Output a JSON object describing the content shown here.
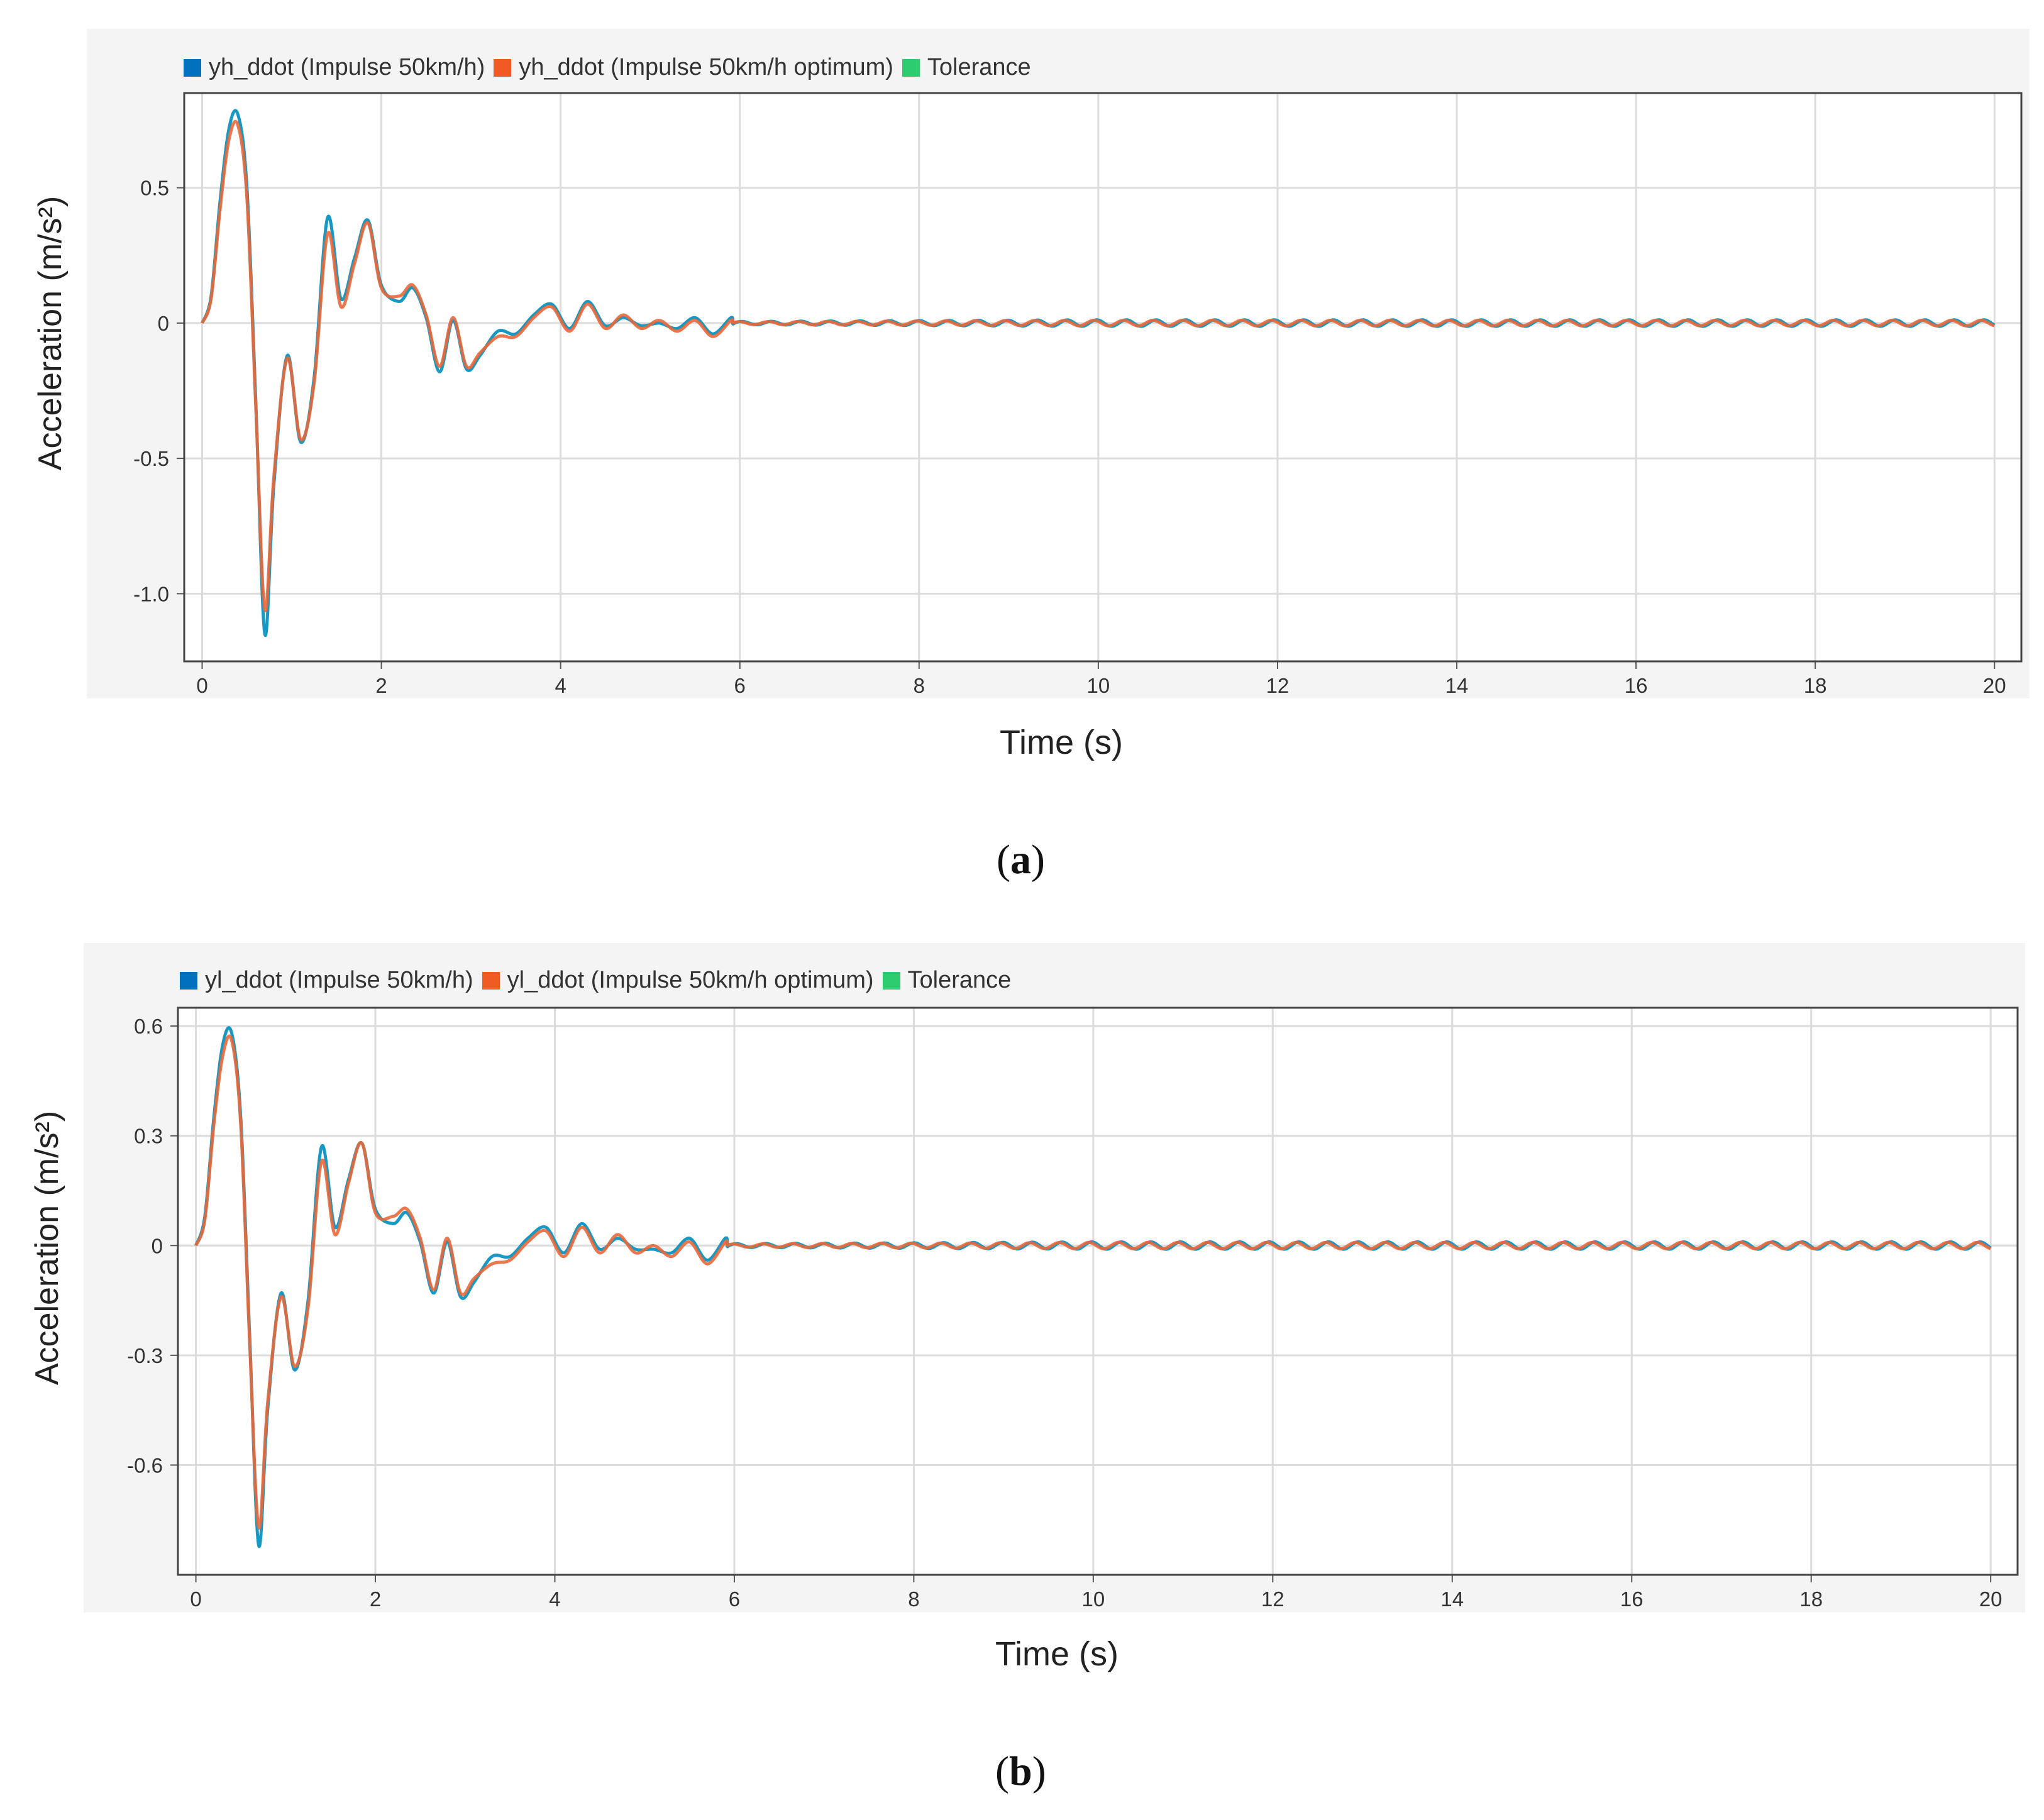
{
  "chart_data": [
    {
      "type": "line",
      "panel_label": "a",
      "legend": [
        {
          "label": "yh_ddot (Impulse 50km/h)",
          "color": "#0072bd"
        },
        {
          "label": "yh_ddot (Impulse 50km/h optimum)",
          "color": "#f05a23"
        },
        {
          "label": "Tolerance",
          "color": "#2ecc71"
        }
      ],
      "xlabel": "Time (s)",
      "ylabel": "Acceleration (m/s²)",
      "xlim": [
        -0.2,
        20.3
      ],
      "ylim": [
        -1.25,
        0.85
      ],
      "xticks": [
        0,
        2,
        4,
        6,
        8,
        10,
        12,
        14,
        16,
        18,
        20
      ],
      "yticks": [
        0.5,
        0,
        -0.5,
        -1.0
      ],
      "ytick_labels": [
        "0.5",
        "0",
        "-0.5",
        "-1.0"
      ],
      "grid": true,
      "series": [
        {
          "name": "yh_ddot (Impulse 50km/h)",
          "color": "#1899c4",
          "x": [
            0,
            0.1,
            0.2,
            0.3,
            0.4,
            0.5,
            0.6,
            0.7,
            0.8,
            0.95,
            1.1,
            1.25,
            1.4,
            1.55,
            1.7,
            1.85,
            2.0,
            2.2,
            2.35,
            2.5,
            2.65,
            2.8,
            2.95,
            3.1,
            3.3,
            3.5,
            3.7,
            3.9,
            4.1,
            4.3,
            4.5,
            4.7,
            4.9,
            5.1,
            5.3,
            5.5,
            5.7,
            5.9
          ],
          "y": [
            0.0,
            0.1,
            0.45,
            0.72,
            0.77,
            0.5,
            -0.3,
            -1.15,
            -0.6,
            -0.12,
            -0.44,
            -0.2,
            0.39,
            0.09,
            0.24,
            0.38,
            0.14,
            0.08,
            0.13,
            0.02,
            -0.18,
            0.01,
            -0.17,
            -0.12,
            -0.03,
            -0.04,
            0.03,
            0.07,
            -0.02,
            0.08,
            -0.01,
            0.02,
            -0.01,
            0.0,
            -0.02,
            0.02,
            -0.04,
            0.02
          ]
        },
        {
          "name": "yh_ddot (Impulse 50km/h optimum)",
          "color": "#e8683a",
          "x": [
            0,
            0.1,
            0.2,
            0.3,
            0.4,
            0.5,
            0.6,
            0.7,
            0.8,
            0.95,
            1.1,
            1.25,
            1.4,
            1.55,
            1.7,
            1.85,
            2.0,
            2.2,
            2.35,
            2.5,
            2.65,
            2.8,
            2.95,
            3.1,
            3.3,
            3.5,
            3.7,
            3.9,
            4.1,
            4.3,
            4.5,
            4.7,
            4.9,
            5.1,
            5.3,
            5.5,
            5.7,
            5.9
          ],
          "y": [
            0.0,
            0.09,
            0.42,
            0.68,
            0.73,
            0.46,
            -0.32,
            -1.06,
            -0.57,
            -0.13,
            -0.43,
            -0.22,
            0.33,
            0.06,
            0.22,
            0.37,
            0.13,
            0.1,
            0.14,
            0.03,
            -0.16,
            0.02,
            -0.16,
            -0.11,
            -0.05,
            -0.05,
            0.02,
            0.06,
            -0.03,
            0.07,
            -0.02,
            0.03,
            -0.02,
            0.01,
            -0.03,
            0.01,
            -0.05,
            0.01
          ]
        }
      ],
      "steady_oscillation": {
        "start": 5.9,
        "end": 20,
        "amplitude": 0.012,
        "period": 0.33
      }
    },
    {
      "type": "line",
      "panel_label": "b",
      "legend": [
        {
          "label": "yl_ddot (Impulse 50km/h)",
          "color": "#0072bd"
        },
        {
          "label": "yl_ddot (Impulse 50km/h optimum)",
          "color": "#f05a23"
        },
        {
          "label": "Tolerance",
          "color": "#2ecc71"
        }
      ],
      "xlabel": "Time (s)",
      "ylabel": "Acceleration (m/s²)",
      "xlim": [
        -0.2,
        20.3
      ],
      "ylim": [
        -0.9,
        0.65
      ],
      "xticks": [
        0,
        2,
        4,
        6,
        8,
        10,
        12,
        14,
        16,
        18,
        20
      ],
      "yticks": [
        0.6,
        0.3,
        0,
        -0.3,
        -0.6
      ],
      "ytick_labels": [
        "0.6",
        "0.3",
        "0",
        "-0.3",
        "-0.6"
      ],
      "grid": true,
      "series": [
        {
          "name": "yl_ddot (Impulse 50km/h)",
          "color": "#1899c4",
          "x": [
            0,
            0.1,
            0.2,
            0.3,
            0.4,
            0.5,
            0.6,
            0.7,
            0.8,
            0.95,
            1.1,
            1.25,
            1.4,
            1.55,
            1.7,
            1.85,
            2.0,
            2.2,
            2.35,
            2.5,
            2.65,
            2.8,
            2.95,
            3.1,
            3.3,
            3.5,
            3.7,
            3.9,
            4.1,
            4.3,
            4.5,
            4.7,
            4.9,
            5.1,
            5.3,
            5.5,
            5.7,
            5.9
          ],
          "y": [
            0.0,
            0.08,
            0.35,
            0.55,
            0.58,
            0.35,
            -0.25,
            -0.82,
            -0.45,
            -0.13,
            -0.34,
            -0.15,
            0.27,
            0.05,
            0.18,
            0.28,
            0.1,
            0.06,
            0.09,
            0.01,
            -0.13,
            0.01,
            -0.14,
            -0.1,
            -0.03,
            -0.03,
            0.02,
            0.05,
            -0.02,
            0.06,
            -0.01,
            0.02,
            -0.01,
            -0.01,
            -0.02,
            0.02,
            -0.04,
            0.02
          ]
        },
        {
          "name": "yl_ddot (Impulse 50km/h optimum)",
          "color": "#e8683a",
          "x": [
            0,
            0.1,
            0.2,
            0.3,
            0.4,
            0.5,
            0.6,
            0.7,
            0.8,
            0.95,
            1.1,
            1.25,
            1.4,
            1.55,
            1.7,
            1.85,
            2.0,
            2.2,
            2.35,
            2.5,
            2.65,
            2.8,
            2.95,
            3.1,
            3.3,
            3.5,
            3.7,
            3.9,
            4.1,
            4.3,
            4.5,
            4.7,
            4.9,
            5.1,
            5.3,
            5.5,
            5.7,
            5.9
          ],
          "y": [
            0.0,
            0.07,
            0.33,
            0.52,
            0.56,
            0.33,
            -0.27,
            -0.77,
            -0.43,
            -0.14,
            -0.33,
            -0.17,
            0.23,
            0.03,
            0.17,
            0.28,
            0.09,
            0.08,
            0.1,
            0.02,
            -0.12,
            0.02,
            -0.13,
            -0.09,
            -0.05,
            -0.04,
            0.01,
            0.04,
            -0.03,
            0.05,
            -0.02,
            0.03,
            -0.02,
            0.0,
            -0.03,
            0.01,
            -0.05,
            0.01
          ]
        }
      ],
      "steady_oscillation": {
        "start": 5.9,
        "end": 20,
        "amplitude": 0.01,
        "period": 0.33
      }
    }
  ]
}
